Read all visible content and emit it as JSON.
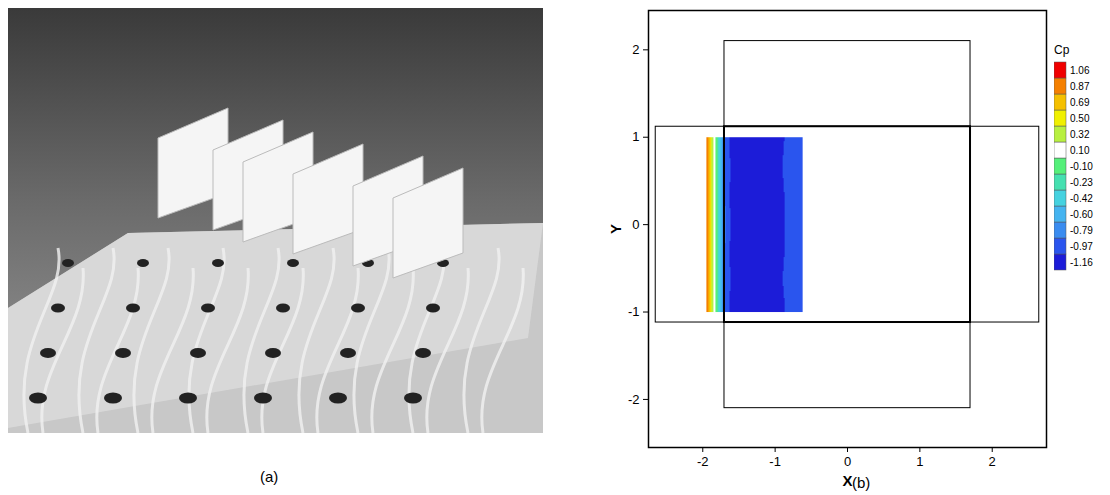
{
  "panel_labels": [
    "(a)",
    "(b)"
  ],
  "chart_data": {
    "type": "contour",
    "xlabel": "X",
    "ylabel": "Y",
    "xlim": [
      -2.75,
      2.75
    ],
    "ylim": [
      -2.55,
      2.45
    ],
    "xticks": [
      -2,
      -1,
      0,
      1,
      2
    ],
    "yticks": [
      -2,
      -1,
      0,
      1,
      2
    ],
    "colorbar": {
      "title": "Cp",
      "ticks": [
        -1.16,
        -0.97,
        -0.79,
        {
          "value": -0.6,
          "label": "-0.60"
        },
        -0.42,
        -0.23,
        {
          "value": -0.1,
          "label": "-0.10"
        },
        {
          "value": 0.1,
          "label": "0.10"
        },
        0.32,
        {
          "value": 0.5,
          "label": "0.50"
        },
        0.69,
        0.87,
        1.06
      ],
      "colors": [
        "#1c1cd8",
        "#2a55ee",
        "#3a8cf0",
        "#45b4f0",
        "#45d2e0",
        "#45e0b0",
        "#55f07a",
        "#ffffff",
        "#b8f040",
        "#f0f000",
        "#f5c000",
        "#f58000",
        "#f00000"
      ]
    },
    "cells": {
      "x": [
        -1.95,
        -1.9,
        -1.85,
        -1.8,
        -1.75,
        -1.7,
        -1.6,
        -1.45,
        -1.3,
        -1.15,
        -1.0,
        -0.85,
        -0.75,
        -0.62
      ],
      "y": [
        -1,
        -0.67,
        -0.33,
        0,
        0.33,
        0.67,
        1
      ],
      "values": [
        [
          1.06,
          0.7,
          0.3,
          -0.12,
          -0.45,
          -0.78,
          -1.05,
          -1.17,
          -1.18,
          -1.18,
          -1.12,
          -0.95,
          -0.85,
          -0.8
        ],
        [
          1.06,
          0.7,
          0.3,
          -0.12,
          -0.45,
          -0.78,
          -1.02,
          -1.16,
          -1.17,
          -1.17,
          -1.05,
          -0.93,
          -0.85,
          -0.8
        ],
        [
          1.06,
          0.7,
          0.3,
          -0.12,
          -0.45,
          -0.78,
          -1.05,
          -1.18,
          -1.18,
          -1.17,
          -1.1,
          -0.95,
          -0.85,
          -0.8
        ],
        [
          1.06,
          0.7,
          0.3,
          -0.12,
          -0.45,
          -0.76,
          -1.0,
          -1.17,
          -1.12,
          -1.1,
          -1.12,
          -0.95,
          -0.85,
          -0.8
        ],
        [
          1.06,
          0.7,
          0.3,
          -0.12,
          -0.45,
          -0.78,
          -1.05,
          -1.18,
          -1.18,
          -1.17,
          -1.1,
          -0.95,
          -0.85,
          -0.8
        ],
        [
          1.06,
          0.7,
          0.3,
          -0.12,
          -0.45,
          -0.78,
          -1.02,
          -1.16,
          -1.17,
          -1.17,
          -1.05,
          -0.93,
          -0.85,
          -0.8
        ],
        [
          1.06,
          0.7,
          0.3,
          -0.12,
          -0.45,
          -0.78,
          -1.05,
          -1.17,
          -1.18,
          -1.18,
          -1.12,
          -0.95,
          -0.85,
          -0.8
        ]
      ]
    },
    "outlines": [
      {
        "x1": -2.65,
        "x2": 2.65,
        "y1": -1.12,
        "y2": 1.12
      },
      {
        "x1": -1.7,
        "x2": 1.7,
        "y1": -2.1,
        "y2": 2.1
      },
      {
        "x1": -1.7,
        "x2": 1.7,
        "y1": -1.12,
        "y2": 1.12
      }
    ]
  }
}
